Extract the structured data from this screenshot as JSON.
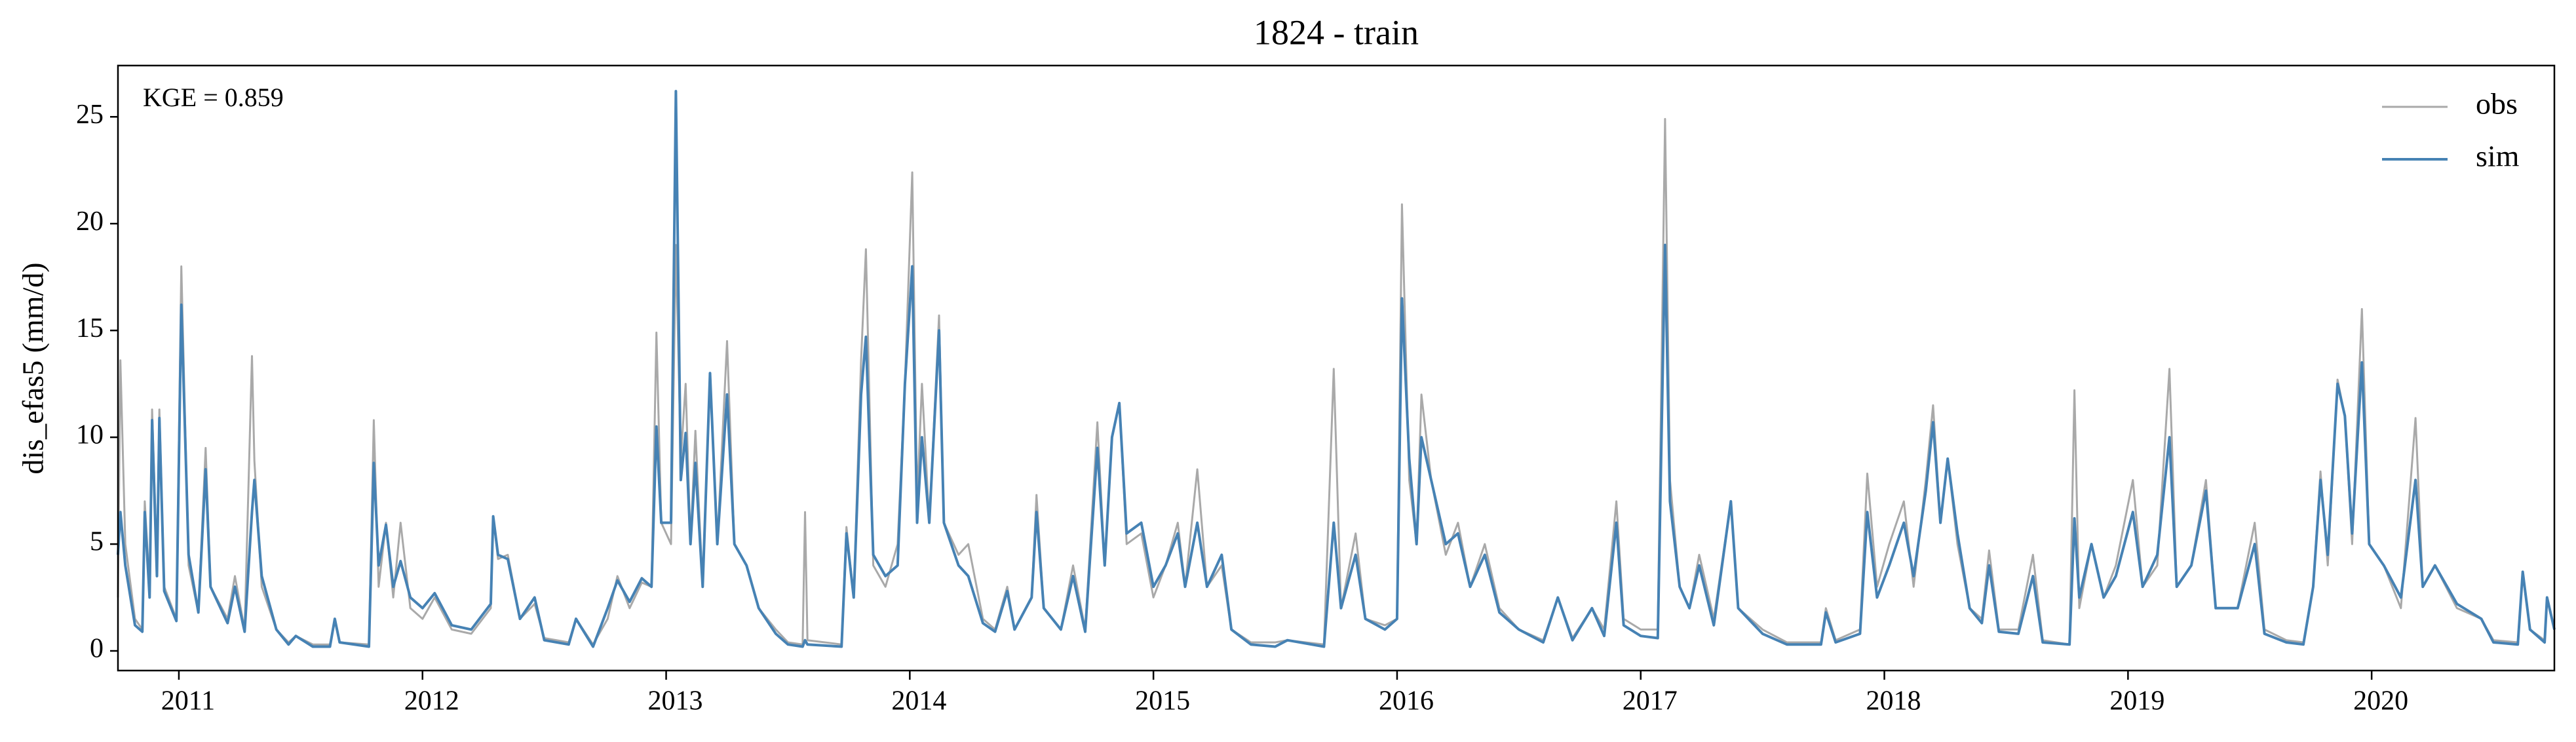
{
  "chart_data": {
    "type": "line",
    "title": "1824 - train",
    "ylabel": "dis_efas5 (mm/d)",
    "annotation": "KGE = 0.859",
    "legend": "upper right",
    "grid": false,
    "xlim": [
      2010.75,
      2020.75
    ],
    "ylim": [
      -0.92,
      27.4
    ],
    "xticks": [
      2011,
      2012,
      2013,
      2014,
      2015,
      2016,
      2017,
      2018,
      2019,
      2020
    ],
    "yticks": [
      0,
      5,
      10,
      15,
      20,
      25
    ],
    "x": [
      2010.75,
      2010.76,
      2010.78,
      2010.82,
      2010.85,
      2010.86,
      2010.88,
      2010.89,
      2010.91,
      2010.92,
      2010.94,
      2010.99,
      2011.01,
      2011.04,
      2011.08,
      2011.11,
      2011.13,
      2011.2,
      2011.23,
      2011.27,
      2011.3,
      2011.31,
      2011.34,
      2011.4,
      2011.45,
      2011.48,
      2011.55,
      2011.62,
      2011.64,
      2011.66,
      2011.78,
      2011.8,
      2011.82,
      2011.85,
      2011.88,
      2011.91,
      2011.95,
      2012.0,
      2012.05,
      2012.12,
      2012.2,
      2012.28,
      2012.29,
      2012.31,
      2012.35,
      2012.4,
      2012.46,
      2012.5,
      2012.6,
      2012.63,
      2012.7,
      2012.76,
      2012.8,
      2012.85,
      2012.9,
      2012.94,
      2012.96,
      2012.98,
      2013.02,
      2013.04,
      2013.06,
      2013.08,
      2013.1,
      2013.12,
      2013.15,
      2013.18,
      2013.21,
      2013.25,
      2013.28,
      2013.33,
      2013.38,
      2013.45,
      2013.5,
      2013.56,
      2013.57,
      2013.58,
      2013.72,
      2013.74,
      2013.77,
      2013.8,
      2013.82,
      2013.85,
      2013.9,
      2013.95,
      2013.98,
      2014.01,
      2014.03,
      2014.05,
      2014.08,
      2014.12,
      2014.14,
      2014.2,
      2014.24,
      2014.3,
      2014.35,
      2014.4,
      2014.43,
      2014.5,
      2014.52,
      2014.55,
      2014.62,
      2014.67,
      2014.72,
      2014.77,
      2014.8,
      2014.83,
      2014.86,
      2014.89,
      2014.95,
      2015.0,
      2015.05,
      2015.1,
      2015.13,
      2015.18,
      2015.22,
      2015.28,
      2015.32,
      2015.4,
      2015.5,
      2015.55,
      2015.7,
      2015.74,
      2015.77,
      2015.83,
      2015.87,
      2015.95,
      2016.0,
      2016.02,
      2016.05,
      2016.08,
      2016.1,
      2016.14,
      2016.2,
      2016.25,
      2016.3,
      2016.36,
      2016.42,
      2016.5,
      2016.6,
      2016.66,
      2016.72,
      2016.8,
      2016.85,
      2016.9,
      2016.93,
      2017.0,
      2017.07,
      2017.1,
      2017.12,
      2017.16,
      2017.2,
      2017.24,
      2017.3,
      2017.37,
      2017.4,
      2017.5,
      2017.6,
      2017.74,
      2017.76,
      2017.8,
      2017.9,
      2017.93,
      2017.97,
      2018.02,
      2018.08,
      2018.12,
      2018.17,
      2018.2,
      2018.23,
      2018.26,
      2018.3,
      2018.35,
      2018.4,
      2018.43,
      2018.47,
      2018.55,
      2018.61,
      2018.65,
      2018.76,
      2018.78,
      2018.8,
      2018.85,
      2018.9,
      2018.95,
      2019.02,
      2019.06,
      2019.12,
      2019.17,
      2019.2,
      2019.26,
      2019.32,
      2019.36,
      2019.45,
      2019.52,
      2019.56,
      2019.65,
      2019.72,
      2019.76,
      2019.79,
      2019.82,
      2019.86,
      2019.89,
      2019.92,
      2019.96,
      2019.99,
      2020.05,
      2020.12,
      2020.18,
      2020.21,
      2020.26,
      2020.35,
      2020.45,
      2020.5,
      2020.6,
      2020.62,
      2020.65,
      2020.71,
      2020.72,
      2020.75
    ],
    "series": [
      {
        "name": "obs",
        "color": "#a9a9a9",
        "values": [
          2.5,
          13.6,
          5,
          1.5,
          1,
          7,
          3,
          11.3,
          4,
          11.3,
          3,
          1.5,
          18,
          4,
          1.8,
          9.5,
          3,
          1.5,
          3.5,
          1,
          13.8,
          8.9,
          3,
          1,
          0.4,
          0.7,
          0.3,
          0.3,
          1.4,
          0.4,
          0.3,
          10.8,
          3,
          6,
          2.5,
          6,
          2,
          1.5,
          2.5,
          1,
          0.8,
          2,
          6.3,
          4.3,
          4.5,
          1.5,
          2.2,
          0.6,
          0.4,
          1.5,
          0.3,
          1.5,
          3.5,
          2,
          3.2,
          3,
          14.9,
          6,
          5,
          19,
          9,
          12.5,
          5,
          10.3,
          3,
          13,
          5,
          14.5,
          5,
          4,
          2,
          1,
          0.4,
          0.3,
          6.5,
          0.5,
          0.3,
          5.8,
          2.5,
          13.6,
          18.8,
          4,
          3,
          5,
          12.5,
          22.4,
          7,
          12.5,
          6,
          15.7,
          6,
          4.5,
          5,
          1.5,
          1,
          3,
          1,
          2.5,
          7.3,
          2,
          1,
          4,
          1,
          10.7,
          4,
          10,
          11.6,
          5,
          5.5,
          2.5,
          4,
          6,
          3,
          8.5,
          3,
          4,
          1,
          0.4,
          0.4,
          0.5,
          0.3,
          13.2,
          2,
          5.5,
          1.5,
          1.2,
          1.5,
          20.9,
          8,
          5,
          12,
          8,
          4.5,
          6,
          3,
          5,
          2,
          1,
          0.5,
          2.5,
          0.6,
          2,
          1,
          7,
          1.5,
          1,
          1,
          24.9,
          8,
          3,
          2,
          4.5,
          1.5,
          7,
          2,
          1,
          0.4,
          0.4,
          2,
          0.5,
          1,
          8.3,
          3,
          5,
          7,
          3,
          8,
          11.5,
          6,
          9,
          5,
          2,
          1.5,
          4.7,
          1,
          1,
          4.5,
          0.5,
          0.3,
          12.2,
          2,
          5,
          2.5,
          4,
          8,
          3,
          4,
          13.2,
          3,
          4,
          8,
          2,
          2,
          6,
          1,
          0.5,
          0.4,
          3,
          8.4,
          4,
          12.7,
          11,
          5,
          16,
          5,
          4,
          2,
          10.9,
          3,
          4,
          2,
          1.5,
          0.5,
          0.4,
          3.6,
          1,
          0.5,
          2.5,
          1
        ]
      },
      {
        "name": "sim",
        "color": "#4682b4",
        "values": [
          4.5,
          6.5,
          4,
          1.2,
          0.9,
          6.5,
          2.5,
          10.8,
          3.5,
          10.9,
          2.8,
          1.4,
          16.2,
          4.5,
          1.8,
          8.5,
          3,
          1.3,
          3,
          0.9,
          6.5,
          8,
          3.5,
          1,
          0.3,
          0.7,
          0.2,
          0.2,
          1.5,
          0.4,
          0.2,
          8.8,
          4,
          5.9,
          3,
          4.2,
          2.5,
          2,
          2.7,
          1.2,
          1,
          2.2,
          6.3,
          4.5,
          4.3,
          1.5,
          2.5,
          0.5,
          0.3,
          1.5,
          0.2,
          2,
          3.3,
          2.3,
          3.4,
          3,
          10.5,
          6,
          6,
          26.2,
          8,
          10.2,
          5,
          8.8,
          3,
          13,
          5,
          12,
          5,
          4,
          2,
          0.8,
          0.3,
          0.2,
          0.5,
          0.3,
          0.2,
          5.5,
          2.5,
          12,
          14.7,
          4.5,
          3.5,
          4,
          12.5,
          18,
          6,
          10,
          6,
          15,
          6,
          4,
          3.5,
          1.3,
          0.9,
          2.8,
          1,
          2.5,
          6.5,
          2,
          1,
          3.5,
          0.9,
          9.5,
          4,
          10,
          11.6,
          5.5,
          6,
          3,
          4,
          5.5,
          3,
          6,
          3,
          4.5,
          1,
          0.3,
          0.2,
          0.5,
          0.2,
          6,
          2,
          4.5,
          1.5,
          1,
          1.5,
          16.5,
          9,
          5,
          10,
          8,
          5,
          5.5,
          3,
          4.5,
          1.8,
          1,
          0.4,
          2.5,
          0.5,
          2,
          0.7,
          6,
          1.2,
          0.7,
          0.6,
          19,
          7,
          3,
          2,
          4,
          1.2,
          7,
          2,
          0.8,
          0.3,
          0.3,
          1.8,
          0.4,
          0.8,
          6.5,
          2.5,
          4,
          6,
          3.5,
          7.5,
          10.7,
          6,
          9,
          5.5,
          2,
          1.3,
          4,
          0.9,
          0.8,
          3.5,
          0.4,
          0.3,
          6.2,
          2.5,
          5,
          2.5,
          3.5,
          6.5,
          3,
          4.5,
          10,
          3,
          4,
          7.5,
          2,
          2,
          5,
          0.8,
          0.4,
          0.3,
          3,
          8,
          4.5,
          12.5,
          11,
          5.5,
          13.5,
          5,
          4,
          2.5,
          8,
          3,
          4,
          2.2,
          1.5,
          0.4,
          0.3,
          3.7,
          1,
          0.4,
          2.5,
          1
        ]
      }
    ]
  }
}
